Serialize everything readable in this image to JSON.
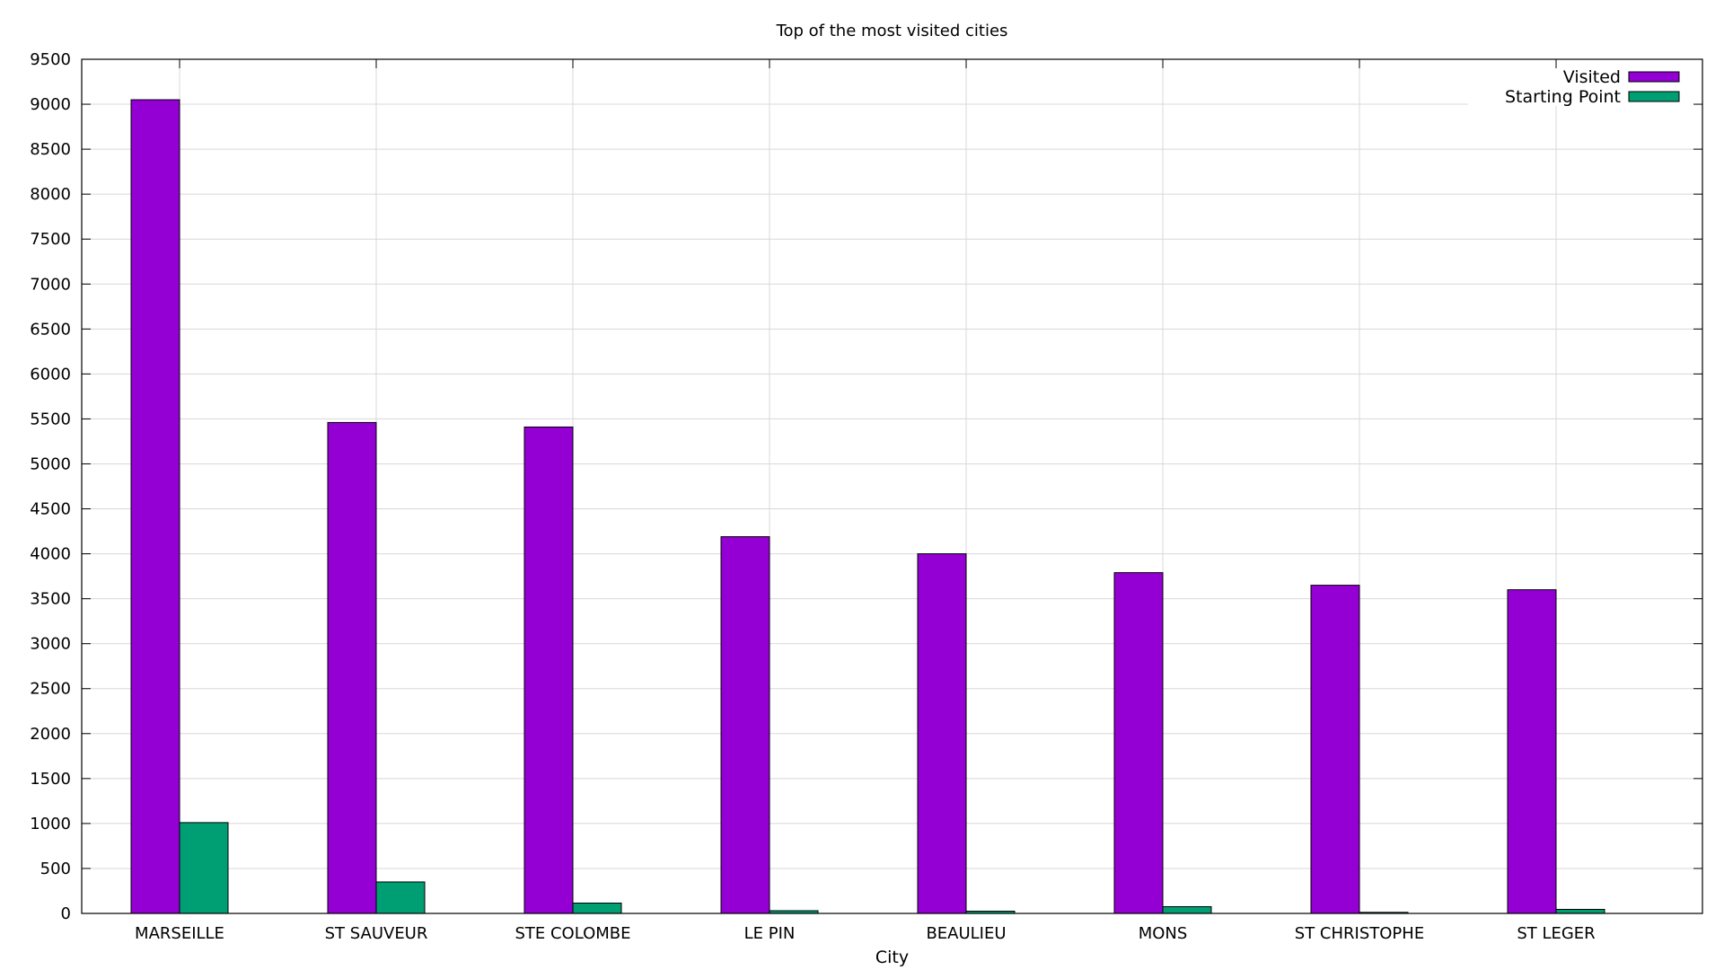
{
  "chart_data": {
    "type": "bar",
    "title": "Top of the most visited cities",
    "xlabel": "City",
    "ylabel": "",
    "categories": [
      "MARSEILLE",
      "ST SAUVEUR",
      "STE COLOMBE",
      "LE PIN",
      "BEAULIEU",
      "MONS",
      "ST CHRISTOPHE",
      "ST LEGER"
    ],
    "series": [
      {
        "name": "Visited",
        "color": "#9400d3",
        "values": [
          9050,
          5460,
          5410,
          4190,
          4000,
          3790,
          3650,
          3600
        ]
      },
      {
        "name": "Starting Point",
        "color": "#009e73",
        "values": [
          1010,
          350,
          115,
          30,
          25,
          75,
          12,
          45
        ]
      }
    ],
    "ylim": [
      0,
      9500
    ],
    "yticks": [
      0,
      500,
      1000,
      1500,
      2000,
      2500,
      3000,
      3500,
      4000,
      4500,
      5000,
      5500,
      6000,
      6500,
      7000,
      7500,
      8000,
      8500,
      9000,
      9500
    ],
    "grid": true,
    "legend_position": "top-right"
  }
}
